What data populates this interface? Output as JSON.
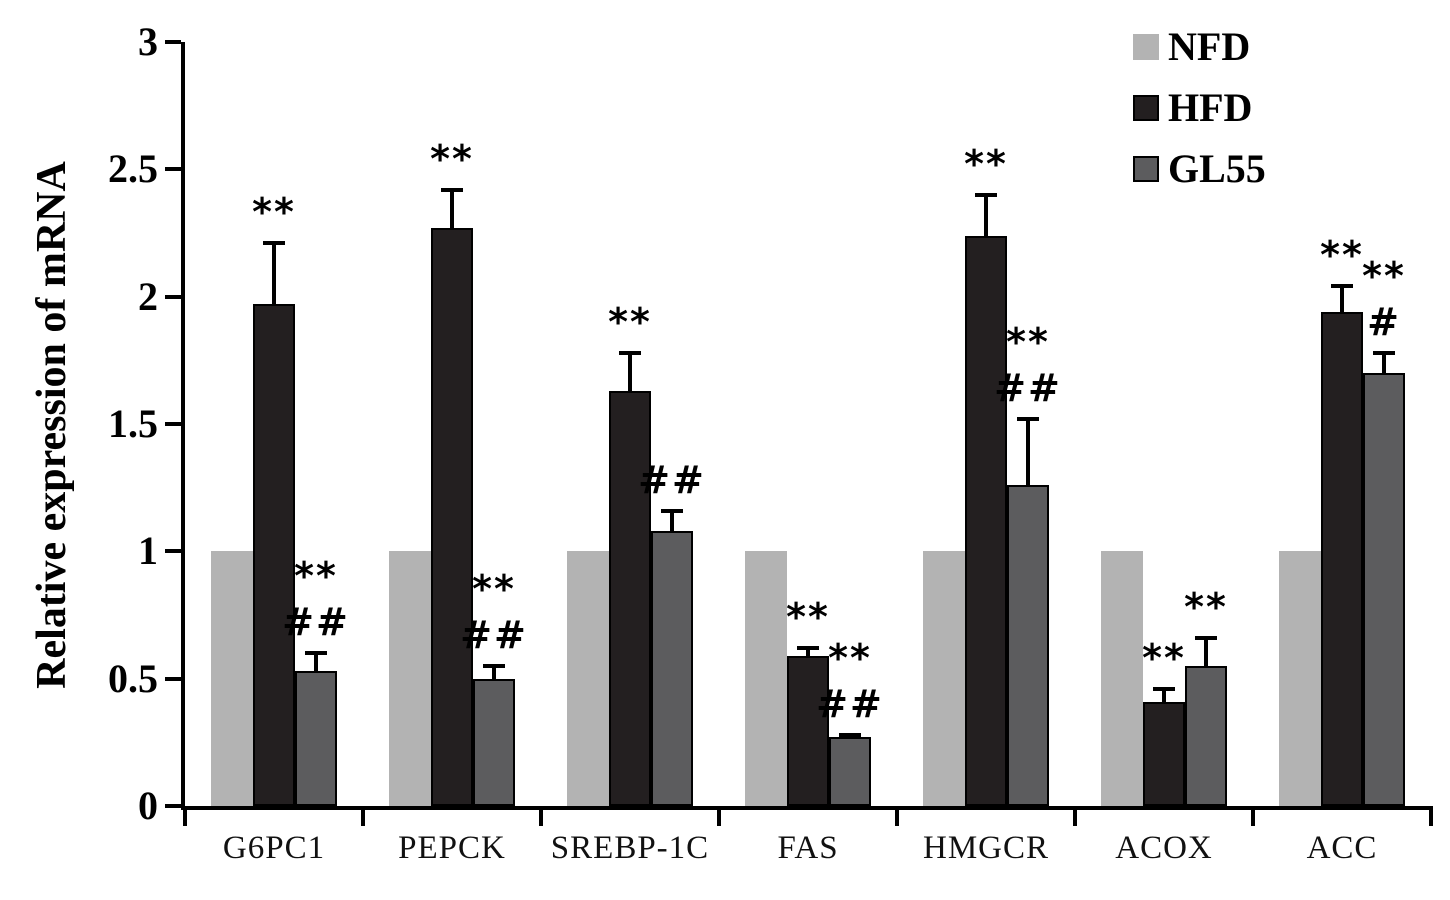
{
  "chart_data": {
    "type": "bar",
    "title": "",
    "xlabel": "",
    "ylabel": "Relative expression of mRNA",
    "ylim": [
      0,
      3
    ],
    "yticks": [
      0,
      0.5,
      1,
      1.5,
      2,
      2.5,
      3
    ],
    "ytick_labels": [
      "0",
      "0.5",
      "1",
      "1.5",
      "2",
      "2.5",
      "3"
    ],
    "categories": [
      "G6PC1",
      "PEPCK",
      "SREBP-1C",
      "FAS",
      "HMGCR",
      "ACOX",
      "ACC"
    ],
    "grid": false,
    "legend_position": "top-right",
    "axis_color": "#000000",
    "background_color": "#ffffff",
    "series": [
      {
        "name": "NFD",
        "color": "#b3b3b3",
        "border": false,
        "values": [
          1.0,
          1.0,
          1.0,
          1.0,
          1.0,
          1.0,
          1.0
        ],
        "errors": [
          0,
          0,
          0,
          0,
          0,
          0,
          0
        ],
        "annotations": [
          [],
          [],
          [],
          [],
          [],
          [],
          []
        ]
      },
      {
        "name": "HFD",
        "color": "#231f20",
        "border": true,
        "values": [
          1.97,
          2.27,
          1.63,
          0.59,
          2.24,
          0.41,
          1.94
        ],
        "errors": [
          0.24,
          0.15,
          0.15,
          0.03,
          0.16,
          0.05,
          0.1
        ],
        "annotations": [
          [
            "**"
          ],
          [
            "**"
          ],
          [
            "**"
          ],
          [
            "**"
          ],
          [
            "**"
          ],
          [
            "**"
          ],
          [
            "**"
          ]
        ]
      },
      {
        "name": "GL55",
        "color": "#5c5c5e",
        "border": true,
        "values": [
          0.53,
          0.5,
          1.08,
          0.27,
          1.26,
          0.55,
          1.7
        ],
        "errors": [
          0.07,
          0.05,
          0.08,
          0.01,
          0.26,
          0.11,
          0.08
        ],
        "annotations": [
          [
            "**",
            "##"
          ],
          [
            "**",
            "##"
          ],
          [
            "##"
          ],
          [
            "**",
            "##"
          ],
          [
            "**",
            "##"
          ],
          [
            "**"
          ],
          [
            "**",
            "#"
          ]
        ]
      }
    ]
  }
}
